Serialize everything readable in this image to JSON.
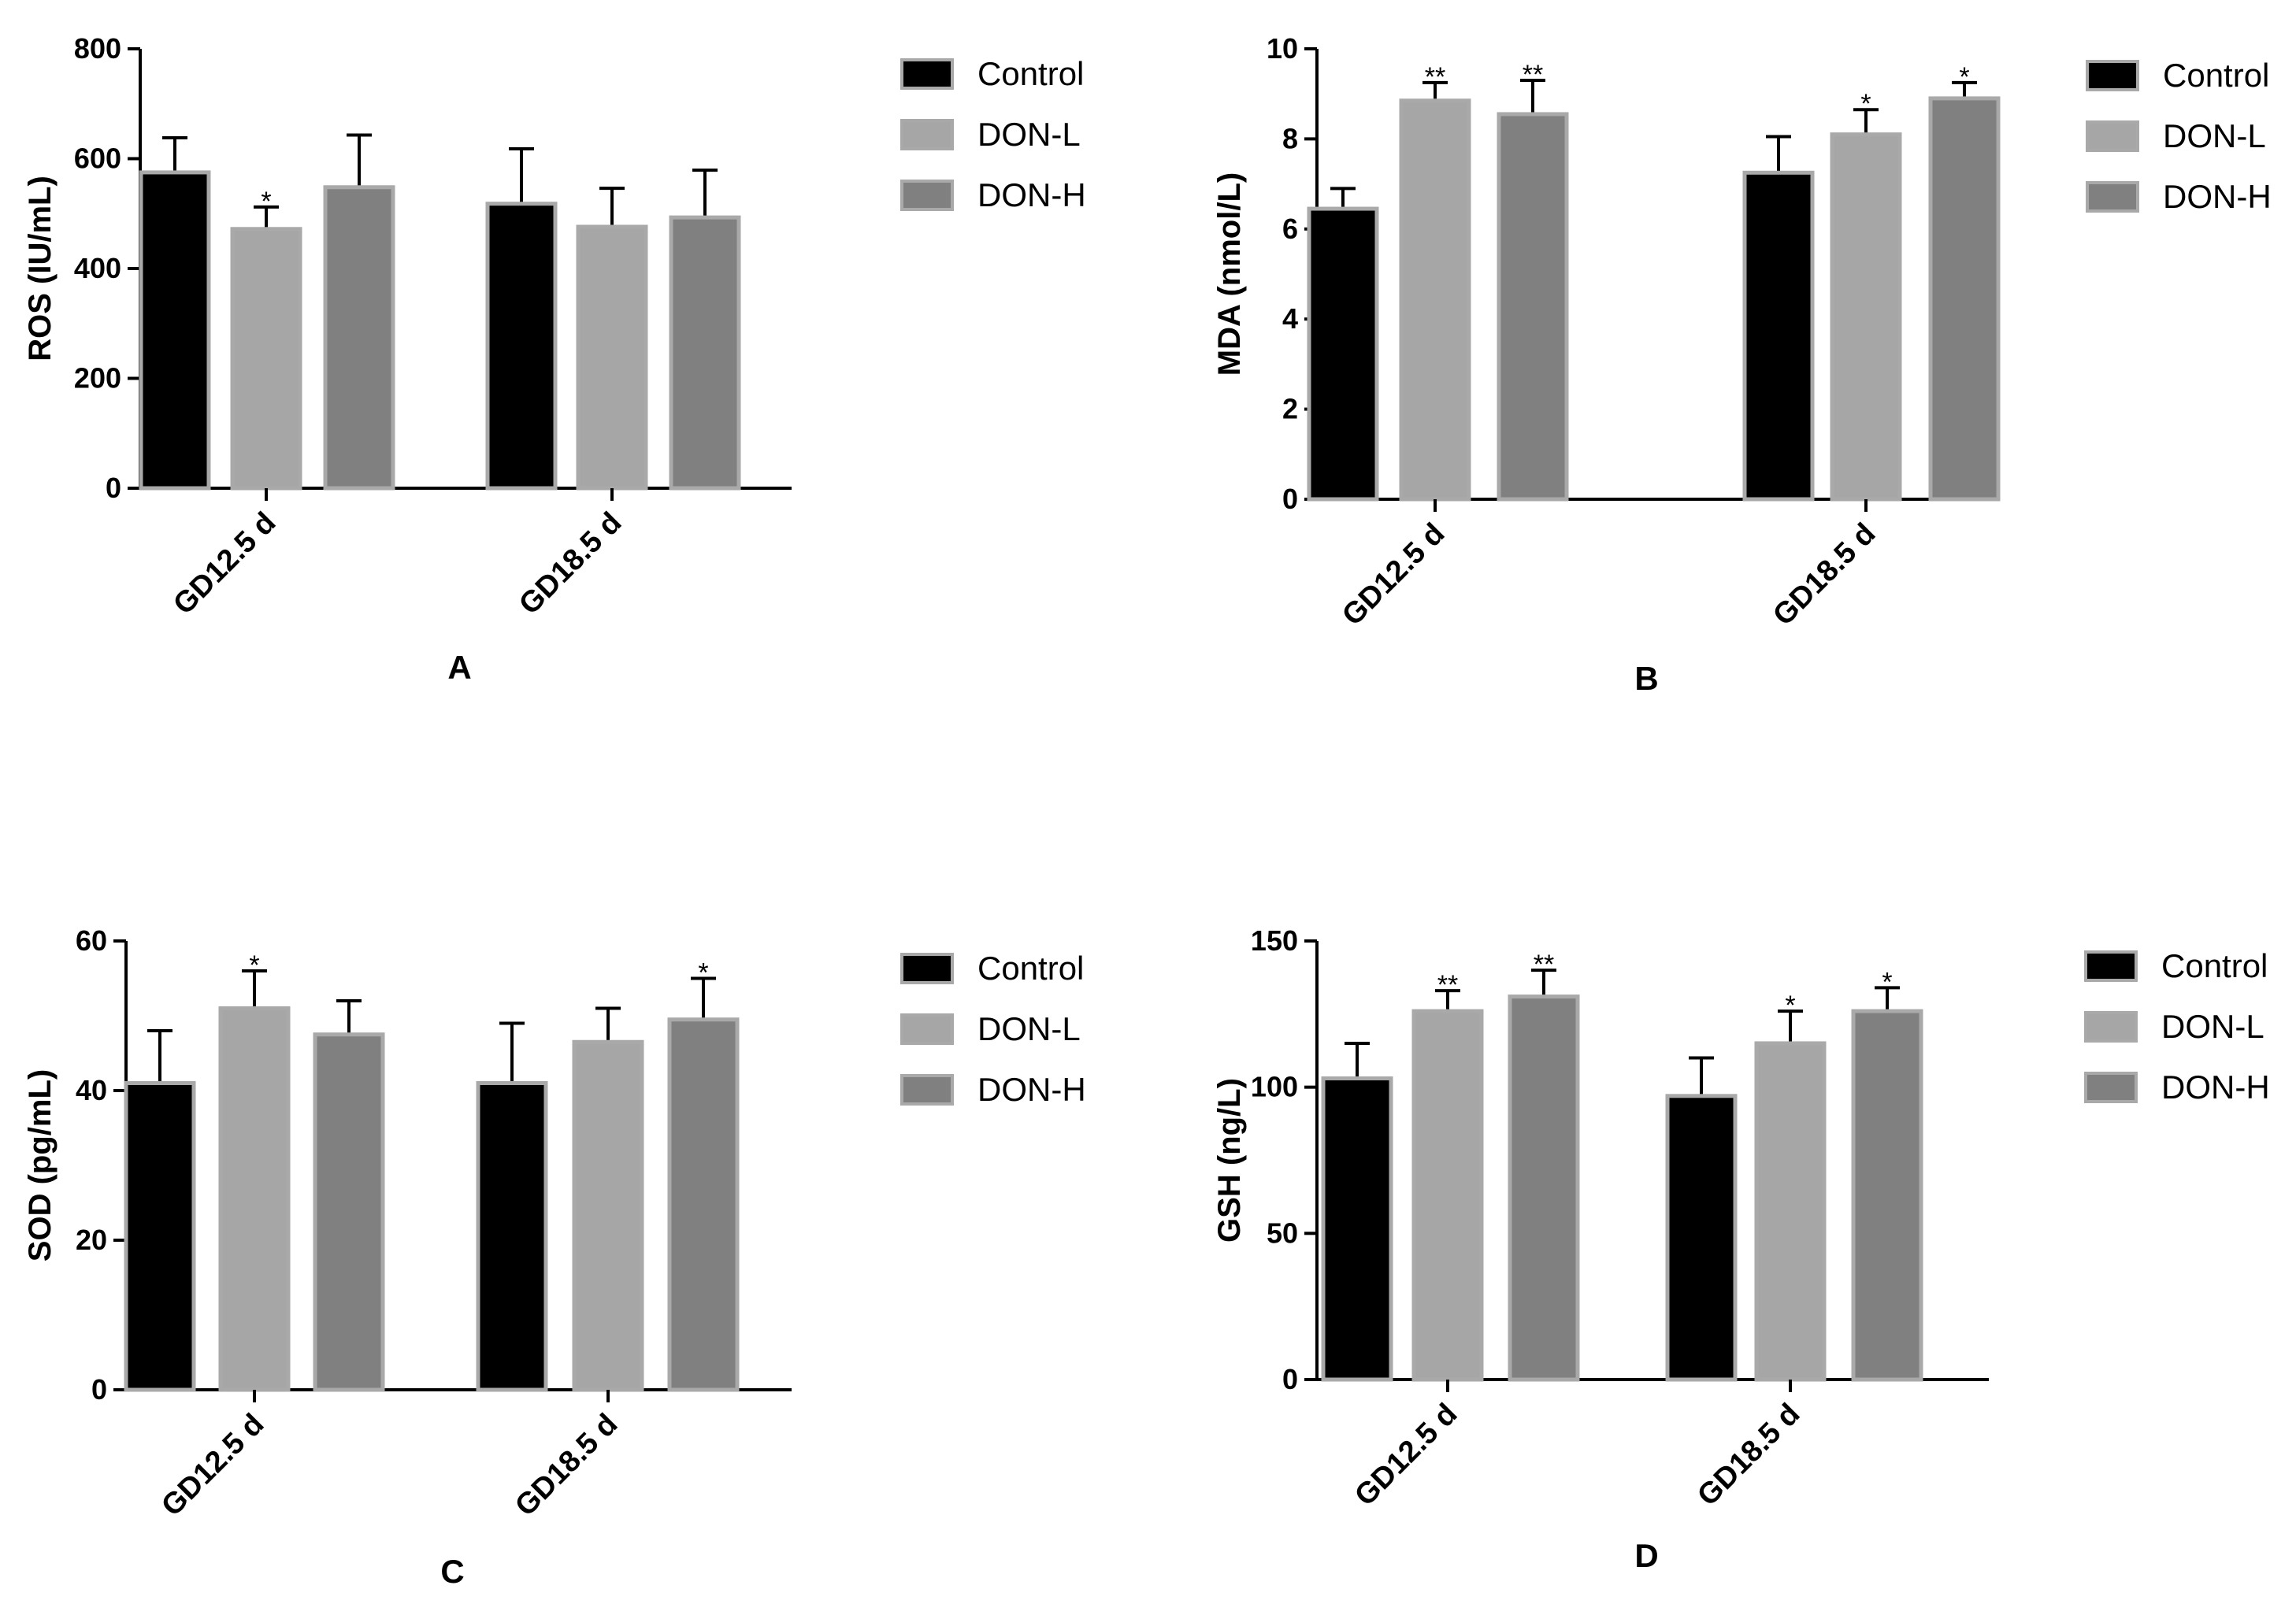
{
  "legend": {
    "entries": [
      "Control",
      "DON-L",
      "DON-H"
    ],
    "colors": [
      "#000000",
      "#a6a6a6",
      "#808080"
    ]
  },
  "chart_data": [
    {
      "type": "bar",
      "panel": "A",
      "ylabel": "ROS (IU/mL)",
      "ylim": [
        0,
        800
      ],
      "yticks": [
        "0",
        "200",
        "400",
        "600",
        "800"
      ],
      "categories": [
        "GD12.5 d",
        "GD18.5 d"
      ],
      "series": [
        {
          "name": "Control",
          "values": [
            575,
            518
          ],
          "errors": [
            63,
            100
          ],
          "sig": [
            "",
            ""
          ]
        },
        {
          "name": "DON-L",
          "values": [
            472,
            476
          ],
          "errors": [
            40,
            70
          ],
          "sig": [
            "*",
            ""
          ]
        },
        {
          "name": "DON-H",
          "values": [
            548,
            493
          ],
          "errors": [
            95,
            86
          ],
          "sig": [
            "",
            ""
          ]
        }
      ],
      "legend_position": "right"
    },
    {
      "type": "bar",
      "panel": "B",
      "ylabel": "MDA (nmol/L)",
      "ylim": [
        0,
        10
      ],
      "yticks": [
        "0",
        "2",
        "4",
        "6",
        "8",
        "10"
      ],
      "categories": [
        "GD12.5 d",
        "GD18.5 d"
      ],
      "series": [
        {
          "name": "Control",
          "values": [
            6.45,
            7.25
          ],
          "errors": [
            0.45,
            0.8
          ],
          "sig": [
            "",
            ""
          ]
        },
        {
          "name": "DON-L",
          "values": [
            8.85,
            8.1
          ],
          "errors": [
            0.4,
            0.55
          ],
          "sig": [
            "**",
            "*"
          ]
        },
        {
          "name": "DON-H",
          "values": [
            8.55,
            8.9
          ],
          "errors": [
            0.75,
            0.35
          ],
          "sig": [
            "**",
            "*"
          ]
        }
      ],
      "legend_position": "right"
    },
    {
      "type": "bar",
      "panel": "C",
      "ylabel": "SOD (pg/mL)",
      "ylim": [
        0,
        60
      ],
      "yticks": [
        "0",
        "20",
        "40",
        "60"
      ],
      "categories": [
        "GD12.5 d",
        "GD18.5 d"
      ],
      "series": [
        {
          "name": "Control",
          "values": [
            41,
            41
          ],
          "errors": [
            7,
            8
          ],
          "sig": [
            "",
            ""
          ]
        },
        {
          "name": "DON-L",
          "values": [
            51,
            46.5
          ],
          "errors": [
            5,
            4.5
          ],
          "sig": [
            "*",
            ""
          ]
        },
        {
          "name": "DON-H",
          "values": [
            47.5,
            49.5
          ],
          "errors": [
            4.5,
            5.5
          ],
          "sig": [
            "",
            "*"
          ]
        }
      ],
      "legend_position": "right"
    },
    {
      "type": "bar",
      "panel": "D",
      "ylabel": "GSH (ng/L)",
      "ylim": [
        0,
        150
      ],
      "yticks": [
        "0",
        "50",
        "100",
        "150"
      ],
      "categories": [
        "GD12.5 d",
        "GD18.5 d"
      ],
      "series": [
        {
          "name": "Control",
          "values": [
            103,
            97
          ],
          "errors": [
            12,
            13
          ],
          "sig": [
            "",
            ""
          ]
        },
        {
          "name": "DON-L",
          "values": [
            126,
            115
          ],
          "errors": [
            7,
            11
          ],
          "sig": [
            "**",
            "*"
          ]
        },
        {
          "name": "DON-H",
          "values": [
            131,
            126
          ],
          "errors": [
            9,
            8
          ],
          "sig": [
            "**",
            "*"
          ]
        }
      ],
      "legend_position": "right"
    }
  ]
}
